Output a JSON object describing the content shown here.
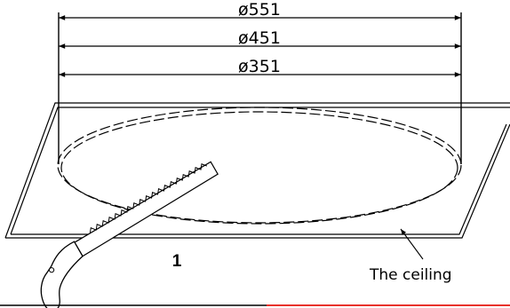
{
  "dimensions": [
    {
      "label": "ø551",
      "value": 551
    },
    {
      "label": "ø451",
      "value": 451
    },
    {
      "label": "ø351",
      "value": 351
    }
  ],
  "step_number": "1",
  "callout": "The ceiling",
  "colors": {
    "line": "#000000",
    "edge_accent": "#e8322b",
    "background": "#ffffff"
  }
}
